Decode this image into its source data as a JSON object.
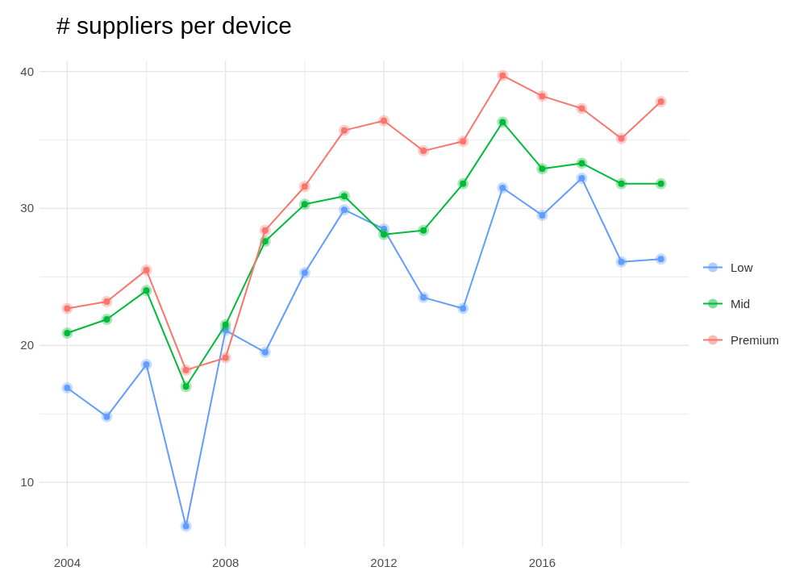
{
  "chart_data": {
    "type": "line",
    "title": "# suppliers per device",
    "x": [
      2004,
      2005,
      2006,
      2007,
      2008,
      2009,
      2010,
      2011,
      2012,
      2013,
      2014,
      2015,
      2016,
      2017,
      2018,
      2019
    ],
    "series": [
      {
        "name": "Low",
        "color": "#619cff",
        "values": [
          16.9,
          14.8,
          18.6,
          6.8,
          21.1,
          19.5,
          25.3,
          29.9,
          28.5,
          23.5,
          22.7,
          31.5,
          29.5,
          32.2,
          26.1,
          26.3
        ]
      },
      {
        "name": "Mid",
        "color": "#00ba38",
        "values": [
          20.9,
          21.9,
          24.0,
          17.0,
          21.5,
          27.6,
          30.3,
          30.9,
          28.1,
          28.4,
          31.8,
          36.3,
          32.9,
          33.3,
          31.8,
          31.8
        ]
      },
      {
        "name": "Premium",
        "color": "#f8766d",
        "values": [
          22.7,
          23.2,
          25.5,
          18.2,
          19.1,
          28.4,
          31.6,
          35.7,
          36.4,
          34.2,
          34.9,
          39.7,
          38.2,
          37.3,
          35.1,
          37.8
        ]
      }
    ],
    "xlim": [
      2003.3,
      2019.7
    ],
    "xticks": [
      2004,
      {
        "value": 2006,
        "label": null
      },
      2008,
      {
        "value": 2010,
        "label": null
      },
      2012,
      {
        "value": 2014,
        "label": null
      },
      2016,
      {
        "value": 2018,
        "label": null
      }
    ],
    "ylim": [
      5.3,
      40.8
    ],
    "yticks": [
      10,
      {
        "value": 15,
        "label": null
      },
      20,
      {
        "value": 25,
        "label": null
      },
      30,
      {
        "value": 35,
        "label": null
      },
      40
    ],
    "grid": true,
    "legend": "right",
    "marker": "circle",
    "line_style": "solid"
  }
}
